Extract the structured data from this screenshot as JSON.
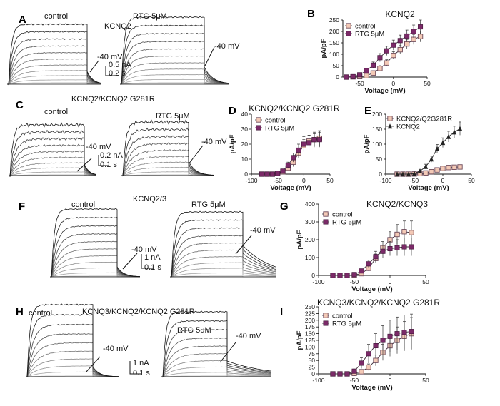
{
  "panel_labels": [
    "A",
    "B",
    "C",
    "D",
    "E",
    "F",
    "G",
    "H",
    "I"
  ],
  "traces": {
    "A": {
      "control_label": "control",
      "title": "KCNQ2",
      "treated_label": "RTG 5μM",
      "arrow1": "-40 mV",
      "arrow2": "-40 mV",
      "scale_y": "0.5 nA",
      "scale_x": "0.2 s"
    },
    "C": {
      "control_label": "control",
      "title": "KCNQ2/KCNQ2 G281R",
      "treated_label": "RTG 5μM",
      "arrow1": "-40 mV",
      "arrow2": "-40 mV",
      "scale_y": "0.2 nA",
      "scale_x": "0.1 s"
    },
    "F": {
      "control_label": "control",
      "title": "KCNQ2/3",
      "treated_label": "RTG 5μM",
      "arrow1": "-40 mV",
      "arrow2": "-40 mV",
      "scale_y": "1 nA",
      "scale_x": "0.1 s"
    },
    "H": {
      "control_label": "control",
      "title": "KCNQ3/KCNQ2/KCNQ2 G281R",
      "treated_label": "RTG 5μM",
      "arrow1": "-40 mV",
      "arrow2": "-40 mV",
      "scale_y": "1 nA",
      "scale_x": "0.1 s"
    }
  },
  "chart_data": [
    {
      "id": "B",
      "type": "line",
      "title": "KCNQ2",
      "xlabel": "Voltage (mV)",
      "ylabel": "pA/pF",
      "xlim": [
        -75,
        50
      ],
      "ylim": [
        0,
        250
      ],
      "xticks": [
        -50,
        0,
        50
      ],
      "yticks": [
        0,
        50,
        100,
        150,
        200,
        250
      ],
      "x": [
        -70,
        -60,
        -50,
        -40,
        -30,
        -20,
        -10,
        0,
        10,
        20,
        30,
        40
      ],
      "legend_position": "top-left",
      "series": [
        {
          "name": "control",
          "marker": "square-open",
          "color": "#9a6a80",
          "values": [
            0,
            1,
            2,
            6,
            18,
            38,
            62,
            95,
            120,
            145,
            165,
            178
          ],
          "errors": [
            0,
            1,
            2,
            4,
            8,
            12,
            14,
            16,
            18,
            20,
            22,
            24
          ]
        },
        {
          "name": "RTG 5μM",
          "marker": "square-filled",
          "color": "#7b2a68",
          "values": [
            0,
            2,
            10,
            28,
            52,
            85,
            115,
            140,
            160,
            180,
            200,
            220
          ],
          "errors": [
            0,
            2,
            5,
            10,
            14,
            18,
            20,
            22,
            24,
            26,
            28,
            30
          ]
        }
      ]
    },
    {
      "id": "D",
      "type": "line",
      "title": "KCNQ2/KCNQ2 G281R",
      "xlabel": "Voltage (mV)",
      "ylabel": "pA/pF",
      "xlim": [
        -100,
        50
      ],
      "ylim": [
        0,
        40
      ],
      "xticks": [
        -100,
        -50,
        0,
        50
      ],
      "yticks": [
        0,
        10,
        20,
        30,
        40
      ],
      "x": [
        -80,
        -70,
        -60,
        -50,
        -40,
        -30,
        -20,
        -10,
        0,
        10,
        20,
        30
      ],
      "legend_position": "top-left",
      "series": [
        {
          "name": "control",
          "marker": "square-open",
          "color": "#9a6a80",
          "values": [
            0,
            0,
            0,
            0.5,
            1.5,
            4,
            8,
            14,
            19,
            22,
            23,
            24
          ],
          "errors": [
            0,
            0,
            0,
            0.5,
            1,
            2,
            3,
            3,
            4,
            4,
            4,
            5
          ]
        },
        {
          "name": "RTG 5μM",
          "marker": "square-filled",
          "color": "#7b2a68",
          "values": [
            0,
            0,
            0,
            0.5,
            2,
            6,
            11,
            16,
            20,
            21,
            23,
            23
          ],
          "errors": [
            0,
            0,
            0,
            0.5,
            1,
            2,
            3,
            4,
            5,
            5,
            5,
            5
          ]
        }
      ]
    },
    {
      "id": "E",
      "type": "line",
      "title": "",
      "xlabel": "Voltage (mV)",
      "ylabel": "pA/pF",
      "xlim": [
        -100,
        50
      ],
      "ylim": [
        0,
        200
      ],
      "xticks": [
        -100,
        -50,
        0,
        50
      ],
      "yticks": [
        0,
        50,
        100,
        150,
        200
      ],
      "x": [
        -80,
        -70,
        -60,
        -50,
        -40,
        -30,
        -20,
        -10,
        0,
        10,
        20,
        30
      ],
      "legend_position": "top-left",
      "series": [
        {
          "name": "KCNQ2/Q2G281R",
          "marker": "square-open",
          "color": "#9a6a80",
          "values": [
            0,
            0,
            0,
            0.5,
            1.5,
            4,
            8,
            14,
            19,
            22,
            23,
            24
          ],
          "errors": [
            0,
            0,
            0,
            0.5,
            1,
            1,
            2,
            2,
            3,
            3,
            3,
            3
          ]
        },
        {
          "name": "KCNQ2",
          "marker": "triangle-filled",
          "color": "#222222",
          "values": [
            0,
            0,
            0,
            2,
            10,
            25,
            50,
            85,
            105,
            125,
            140,
            152
          ],
          "errors": [
            0,
            0,
            0,
            2,
            5,
            8,
            10,
            14,
            16,
            18,
            20,
            22
          ]
        }
      ]
    },
    {
      "id": "G",
      "type": "line",
      "title": "KCNQ2/KCNQ3",
      "xlabel": "Voltage (mV)",
      "ylabel": "pA/pF",
      "xlim": [
        -100,
        50
      ],
      "ylim": [
        0,
        400
      ],
      "xticks": [
        -100,
        -50,
        0,
        50
      ],
      "yticks": [
        0,
        100,
        200,
        300,
        400
      ],
      "x": [
        -80,
        -70,
        -60,
        -50,
        -40,
        -30,
        -20,
        -10,
        0,
        10,
        20,
        30
      ],
      "legend_position": "top-left",
      "series": [
        {
          "name": "control",
          "marker": "square-open",
          "color": "#9a6a80",
          "values": [
            0,
            0,
            0,
            2,
            10,
            40,
            95,
            155,
            200,
            230,
            245,
            240
          ],
          "errors": [
            0,
            0,
            0,
            2,
            6,
            15,
            25,
            35,
            45,
            55,
            60,
            65
          ]
        },
        {
          "name": "RTG 5μM",
          "marker": "square-filled",
          "color": "#7b2a68",
          "values": [
            0,
            0,
            0,
            5,
            25,
            65,
            105,
            135,
            150,
            155,
            160,
            160
          ],
          "errors": [
            0,
            0,
            0,
            3,
            10,
            20,
            30,
            35,
            40,
            45,
            50,
            50
          ]
        }
      ]
    },
    {
      "id": "I",
      "type": "line",
      "title": "KCNQ3/KCNQ2/KCNQ2 G281R",
      "xlabel": "Voltage (mV)",
      "ylabel": "pA/pF",
      "xlim": [
        -100,
        50
      ],
      "ylim": [
        0,
        250
      ],
      "xticks": [
        -100,
        -50,
        0,
        50
      ],
      "yticks": [
        0,
        25,
        50,
        75,
        100,
        125,
        150,
        175,
        200,
        225,
        250
      ],
      "x": [
        -80,
        -70,
        -60,
        -50,
        -40,
        -30,
        -20,
        -10,
        0,
        10,
        20,
        30
      ],
      "legend_position": "top-left",
      "series": [
        {
          "name": "control",
          "marker": "square-open",
          "color": "#9a6a80",
          "values": [
            0,
            0,
            0,
            2,
            8,
            25,
            50,
            80,
            105,
            125,
            140,
            150
          ],
          "errors": [
            0,
            0,
            0,
            2,
            5,
            12,
            20,
            30,
            40,
            50,
            55,
            60
          ]
        },
        {
          "name": "RTG 5μM",
          "marker": "square-filled",
          "color": "#7b2a68",
          "values": [
            0,
            0,
            0,
            10,
            40,
            75,
            105,
            125,
            140,
            150,
            155,
            158
          ],
          "errors": [
            0,
            0,
            0,
            8,
            20,
            35,
            45,
            55,
            60,
            62,
            64,
            65
          ]
        }
      ]
    }
  ]
}
